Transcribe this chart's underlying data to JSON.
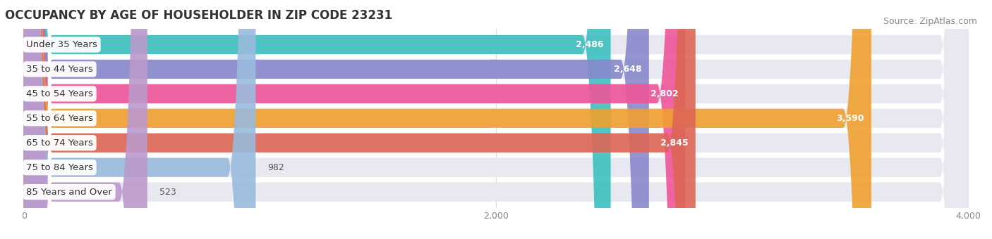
{
  "title": "OCCUPANCY BY AGE OF HOUSEHOLDER IN ZIP CODE 23231",
  "source": "Source: ZipAtlas.com",
  "categories": [
    "Under 35 Years",
    "35 to 44 Years",
    "45 to 54 Years",
    "55 to 64 Years",
    "65 to 74 Years",
    "75 to 84 Years",
    "85 Years and Over"
  ],
  "values": [
    2486,
    2648,
    2802,
    3590,
    2845,
    982,
    523
  ],
  "bar_colors": [
    "#3dbfbf",
    "#8888cc",
    "#ee5599",
    "#f0a030",
    "#dd6655",
    "#99bbdd",
    "#bb99cc"
  ],
  "xlim": [
    0,
    4000
  ],
  "xticks": [
    0,
    2000,
    4000
  ],
  "background_color": "#ffffff",
  "bar_background_color": "#e8e8f0",
  "title_fontsize": 12,
  "source_fontsize": 9,
  "label_fontsize": 9.5,
  "value_fontsize": 9
}
